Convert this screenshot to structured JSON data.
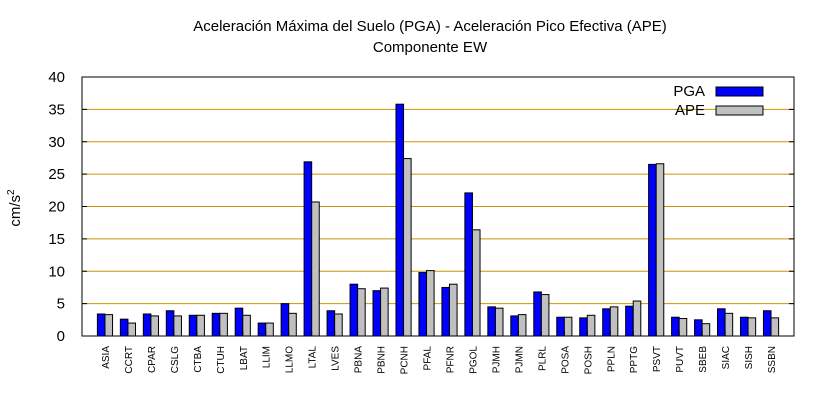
{
  "chart_data": {
    "type": "bar",
    "title": "Aceleración Máxima del Suelo (PGA) -  Aceleración Pico Efectiva (APE)",
    "subtitle": "Componente EW",
    "ylabel": "cm/s",
    "ylabel_superscript": "2",
    "xlabel": "",
    "ylim": [
      0,
      40
    ],
    "yticks": [
      "0",
      "5",
      "10",
      "15",
      "20",
      "25",
      "30",
      "35",
      "40"
    ],
    "grid": "horizontal",
    "legend_position": "top-right",
    "categories": [
      "ASIA",
      "CCRT",
      "CPAR",
      "CSLG",
      "CTBA",
      "CTUH",
      "LBAT",
      "LLIM",
      "LLMO",
      "LTAL",
      "LVES",
      "PBNA",
      "PBNH",
      "PCNH",
      "PFAL",
      "PFNR",
      "PGOL",
      "PJMH",
      "PJMN",
      "PLRL",
      "POSA",
      "POSH",
      "PPLN",
      "PPTG",
      "PSVT",
      "PUVT",
      "SBEB",
      "SIAC",
      "SISH",
      "SSBN"
    ],
    "series": [
      {
        "name": "PGA",
        "color": "#0000ff",
        "values": [
          3.4,
          2.6,
          3.4,
          3.9,
          3.2,
          3.5,
          4.3,
          2.0,
          5.0,
          26.9,
          3.9,
          8.0,
          7.0,
          35.8,
          9.8,
          7.5,
          22.1,
          4.5,
          3.1,
          6.8,
          2.9,
          2.8,
          4.2,
          4.6,
          26.5,
          2.9,
          2.5,
          4.2,
          2.9,
          3.9
        ]
      },
      {
        "name": "APE",
        "color": "#c0c0c0",
        "values": [
          3.3,
          2.0,
          3.1,
          3.1,
          3.2,
          3.5,
          3.2,
          2.0,
          3.5,
          20.7,
          3.4,
          7.3,
          7.4,
          27.4,
          10.1,
          8.0,
          16.4,
          4.3,
          3.3,
          6.4,
          2.9,
          3.2,
          4.5,
          5.4,
          26.6,
          2.7,
          1.9,
          3.5,
          2.8,
          2.8
        ]
      }
    ]
  }
}
